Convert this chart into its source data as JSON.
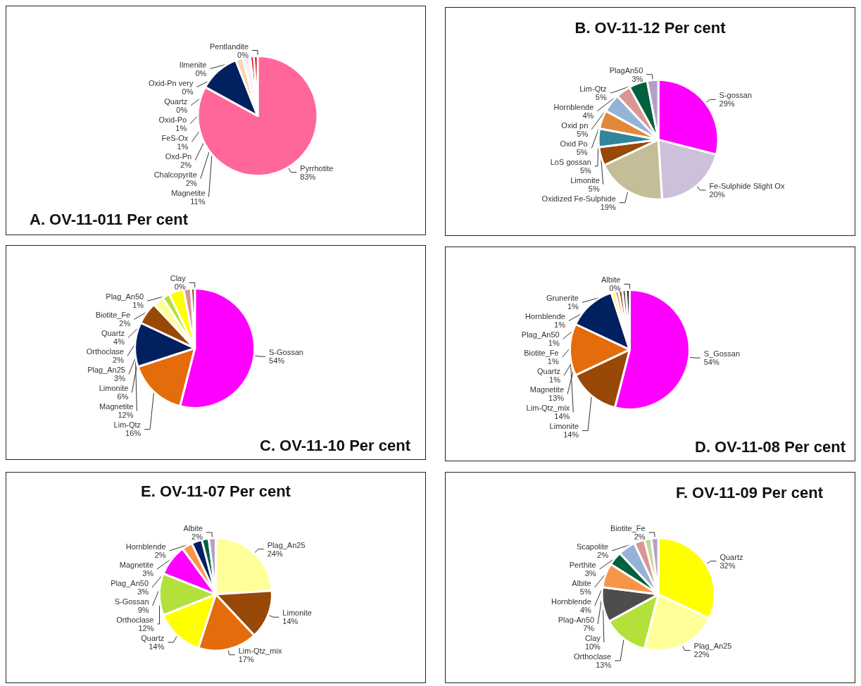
{
  "chart_data": [
    {
      "type": "pie",
      "title": "A. OV-11-011 Per cent",
      "categories": [
        "Pyrrhotite",
        "Magnetite",
        "Chalcopyrite",
        "Oxd-Pn",
        "FeS-Ox",
        "Oxid-Po",
        "Pentlandite",
        "Ilmenite",
        "Oxid-Pn very",
        "Quartz"
      ],
      "values": [
        83,
        11,
        2,
        2,
        1,
        1,
        0,
        0,
        0,
        0
      ],
      "value_labels": [
        "83%",
        "11%",
        "2%",
        "2%",
        "1%",
        "1%",
        "0%",
        "0%",
        "0%",
        "0%"
      ],
      "colors": [
        "#ff6699",
        "#002060",
        "#fcd5b4",
        "#f2f2f2",
        "#ff0000",
        "#c00000",
        "#a6a6a6",
        "#7f7f7f",
        "#404040",
        "#000000"
      ]
    },
    {
      "type": "pie",
      "title": "B. OV-11-12 Per cent",
      "categories": [
        "S-gossan",
        "Fe-Sulphide Slight Ox",
        "Oxidized Fe-Sulphide",
        "Limonite",
        "LoS gossan",
        "Oxid Po",
        "Oxid pn",
        "Hornblende",
        "Lim-Qtz",
        "PlagAn50"
      ],
      "values": [
        29,
        20,
        19,
        5,
        5,
        5,
        5,
        4,
        5,
        3
      ],
      "value_labels": [
        "29%",
        "20%",
        "19%",
        "5%",
        "5%",
        "5%",
        "5%",
        "4%",
        "5%",
        "3%"
      ],
      "colors": [
        "#ff00ff",
        "#ccc0da",
        "#c4bd97",
        "#984807",
        "#31859c",
        "#e3883a",
        "#95b3d7",
        "#d99694",
        "#006040",
        "#b2a1c7"
      ]
    },
    {
      "type": "pie",
      "title": "C. OV-11-10 Per cent",
      "categories": [
        "S-Gossan",
        "Lim-Qtz",
        "Magnetite",
        "Limonite",
        "Plag_An25",
        "Orthoclase",
        "Quartz",
        "Biotite_Fe",
        "Plag_An50",
        "Clay"
      ],
      "values": [
        54,
        16,
        12,
        6,
        3,
        2,
        4,
        2,
        1,
        0
      ],
      "value_labels": [
        "54%",
        "16%",
        "12%",
        "6%",
        "3%",
        "2%",
        "4%",
        "2%",
        "1%",
        "0%"
      ],
      "colors": [
        "#ff00ff",
        "#e46c0a",
        "#002060",
        "#984807",
        "#ffff99",
        "#b3e03a",
        "#ffff00",
        "#d99694",
        "#8b4513",
        "#000000"
      ]
    },
    {
      "type": "pie",
      "title": "D. OV-11-08 Per cent",
      "categories": [
        "S_Gossan",
        "Limonite",
        "Lim-Qtz_mix",
        "Magnetite",
        "Quartz",
        "Biotite_Fe",
        "Plag_An50",
        "Hornblende",
        "Grunerite",
        "Albite"
      ],
      "values": [
        54,
        14,
        14,
        13,
        1,
        1,
        1,
        1,
        1,
        0
      ],
      "value_labels": [
        "54%",
        "14%",
        "14%",
        "13%",
        "1%",
        "1%",
        "1%",
        "1%",
        "1%",
        "0%"
      ],
      "colors": [
        "#ff00ff",
        "#984807",
        "#e46c0a",
        "#002060",
        "#ffff00",
        "#d99694",
        "#8b4513",
        "#595959",
        "#1a1a1a",
        "#000000"
      ]
    },
    {
      "type": "pie",
      "title": "E. OV-11-07 Per cent",
      "categories": [
        "Plag_An25",
        "Limonite",
        "Lim-Qtz_mix",
        "Quartz",
        "Orthoclase",
        "S-Gossan",
        "Plag_An50",
        "Magnetite",
        "Hornblende",
        "Albite"
      ],
      "values": [
        24,
        14,
        17,
        14,
        12,
        9,
        3,
        3,
        2,
        2
      ],
      "value_labels": [
        "24%",
        "14%",
        "17%",
        "14%",
        "12%",
        "9%",
        "3%",
        "3%",
        "2%",
        "2%"
      ],
      "colors": [
        "#ffff99",
        "#984807",
        "#e46c0a",
        "#ffff00",
        "#b3e03a",
        "#ff00ff",
        "#f79646",
        "#002060",
        "#006040",
        "#b2a1c7"
      ]
    },
    {
      "type": "pie",
      "title": "F. OV-11-09 Per cent",
      "categories": [
        "Quartz",
        "Plag_An25",
        "Orthoclase",
        "Clay",
        "Plag-An50",
        "Hornblende",
        "Albite",
        "Perthite",
        "Scapolite",
        "Biotite_Fe"
      ],
      "values": [
        32,
        22,
        13,
        10,
        7,
        4,
        5,
        3,
        2,
        2
      ],
      "value_labels": [
        "32%",
        "22%",
        "13%",
        "10%",
        "7%",
        "4%",
        "5%",
        "3%",
        "2%",
        "2%"
      ],
      "colors": [
        "#ffff00",
        "#ffff99",
        "#b3e03a",
        "#4d4d4d",
        "#f79646",
        "#006040",
        "#95b3d7",
        "#d99694",
        "#c3d69b",
        "#b2a1c7"
      ]
    }
  ]
}
